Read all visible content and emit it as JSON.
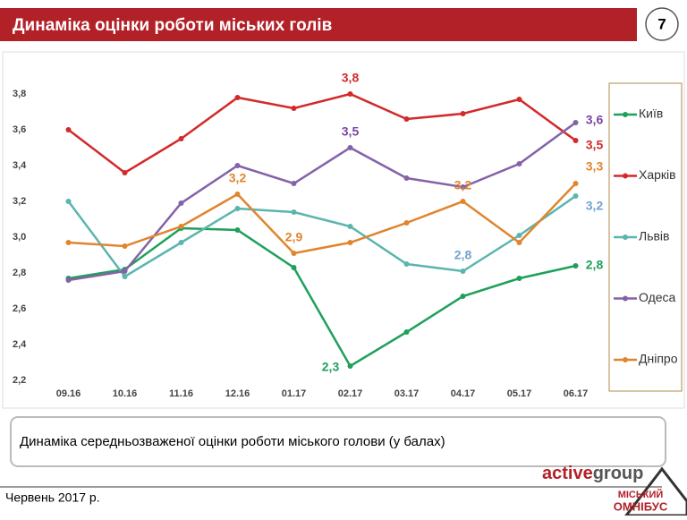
{
  "header": {
    "title": "Динаміка оцінки роботи міських голів",
    "page": "7"
  },
  "chart_data": {
    "type": "line",
    "categories": [
      "09.16",
      "10.16",
      "11.16",
      "12.16",
      "01.17",
      "02.17",
      "03.17",
      "04.17",
      "05.17",
      "06.17"
    ],
    "ylim": [
      2.2,
      3.8
    ],
    "yticks": [
      {
        "value": 2.2,
        "label": "2,2"
      },
      {
        "value": 2.4,
        "label": "2,4"
      },
      {
        "value": 2.6,
        "label": "2,6"
      },
      {
        "value": 2.8,
        "label": "2,8"
      },
      {
        "value": 3.0,
        "label": "3,0"
      },
      {
        "value": 3.2,
        "label": "3,2"
      },
      {
        "value": 3.4,
        "label": "3,4"
      },
      {
        "value": 3.6,
        "label": "3,6"
      },
      {
        "value": 3.8,
        "label": "3,8"
      }
    ],
    "grid": false,
    "legend": "right",
    "series": [
      {
        "name": "Київ",
        "color": "#1ea05a",
        "label_color": "#1ea05a",
        "values": [
          2.77,
          2.82,
          3.05,
          3.04,
          2.83,
          2.28,
          2.47,
          2.67,
          2.77,
          2.84
        ],
        "value_labels": [
          null,
          null,
          null,
          null,
          null,
          "2,3",
          null,
          null,
          null,
          "2,8"
        ]
      },
      {
        "name": "Харків",
        "color": "#d22a2a",
        "label_color": "#d22a2a",
        "values": [
          3.6,
          3.36,
          3.55,
          3.78,
          3.72,
          3.8,
          3.66,
          3.69,
          3.77,
          3.54
        ],
        "value_labels": [
          null,
          null,
          null,
          null,
          null,
          "3,8",
          null,
          null,
          null,
          "3,5"
        ]
      },
      {
        "name": "Львів",
        "color": "#5bb5ad",
        "label_color": "#72a3cf",
        "values": [
          3.2,
          2.78,
          2.97,
          3.16,
          3.14,
          3.06,
          2.85,
          2.81,
          3.01,
          3.23
        ],
        "value_labels": [
          null,
          null,
          null,
          null,
          null,
          null,
          null,
          "2,8",
          null,
          "3,2"
        ]
      },
      {
        "name": "Одеса",
        "color": "#8462a8",
        "label_color": "#7a46a0",
        "values": [
          2.76,
          2.81,
          3.19,
          3.4,
          3.3,
          3.5,
          3.33,
          3.28,
          3.41,
          3.64
        ],
        "value_labels": [
          null,
          null,
          null,
          null,
          null,
          "3,5",
          null,
          null,
          null,
          "3,6"
        ]
      },
      {
        "name": "Дніпро",
        "color": "#e0852e",
        "label_color": "#e0852e",
        "values": [
          2.97,
          2.95,
          3.06,
          3.24,
          2.91,
          2.97,
          3.08,
          3.2,
          2.97,
          3.3
        ],
        "value_labels": [
          null,
          null,
          null,
          "3,2",
          "2,9",
          null,
          null,
          "3,2",
          null,
          "3,3"
        ]
      }
    ]
  },
  "caption": "Динаміка  середньозваженої оцінки роботи міського голови (у балах)",
  "footer": {
    "date": "Червень 2017 р.",
    "brand_a": "active",
    "brand_b": "group",
    "logo_top": "МІСЬКИЙ",
    "logo_bottom": "ОМНІБУС"
  }
}
